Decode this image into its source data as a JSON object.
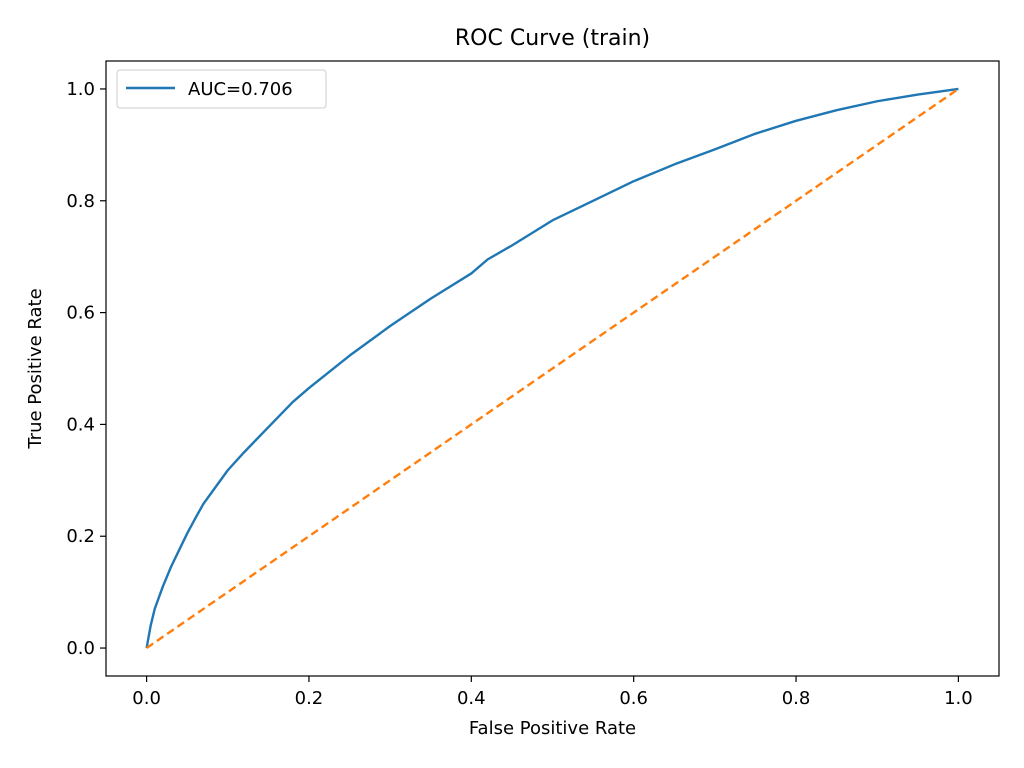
{
  "chart_data": {
    "type": "line",
    "title": "ROC Curve (train)",
    "xlabel": "False Positive Rate",
    "ylabel": "True Positive Rate",
    "xlim": [
      -0.05,
      1.05
    ],
    "ylim": [
      -0.05,
      1.05
    ],
    "x_ticks": [
      "0.0",
      "0.2",
      "0.4",
      "0.6",
      "0.8",
      "1.0"
    ],
    "y_ticks": [
      "0.0",
      "0.2",
      "0.4",
      "0.6",
      "0.8",
      "1.0"
    ],
    "grid": false,
    "legend_position": "upper-left",
    "series": [
      {
        "name": "AUC=0.706",
        "color": "#1f77b4",
        "style": "solid",
        "x": [
          0.0,
          0.005,
          0.01,
          0.02,
          0.03,
          0.04,
          0.05,
          0.06,
          0.07,
          0.08,
          0.1,
          0.12,
          0.15,
          0.18,
          0.2,
          0.25,
          0.3,
          0.35,
          0.4,
          0.42,
          0.45,
          0.5,
          0.55,
          0.6,
          0.65,
          0.7,
          0.75,
          0.8,
          0.85,
          0.9,
          0.95,
          1.0
        ],
        "y": [
          0.0,
          0.04,
          0.07,
          0.11,
          0.145,
          0.175,
          0.205,
          0.232,
          0.258,
          0.278,
          0.318,
          0.35,
          0.395,
          0.44,
          0.465,
          0.523,
          0.576,
          0.625,
          0.67,
          0.695,
          0.72,
          0.765,
          0.8,
          0.835,
          0.865,
          0.892,
          0.92,
          0.943,
          0.962,
          0.978,
          0.99,
          1.0
        ]
      },
      {
        "name": "",
        "color": "#ff7f0e",
        "style": "dashed",
        "x": [
          0.0,
          1.0
        ],
        "y": [
          0.0,
          1.0
        ]
      }
    ]
  }
}
